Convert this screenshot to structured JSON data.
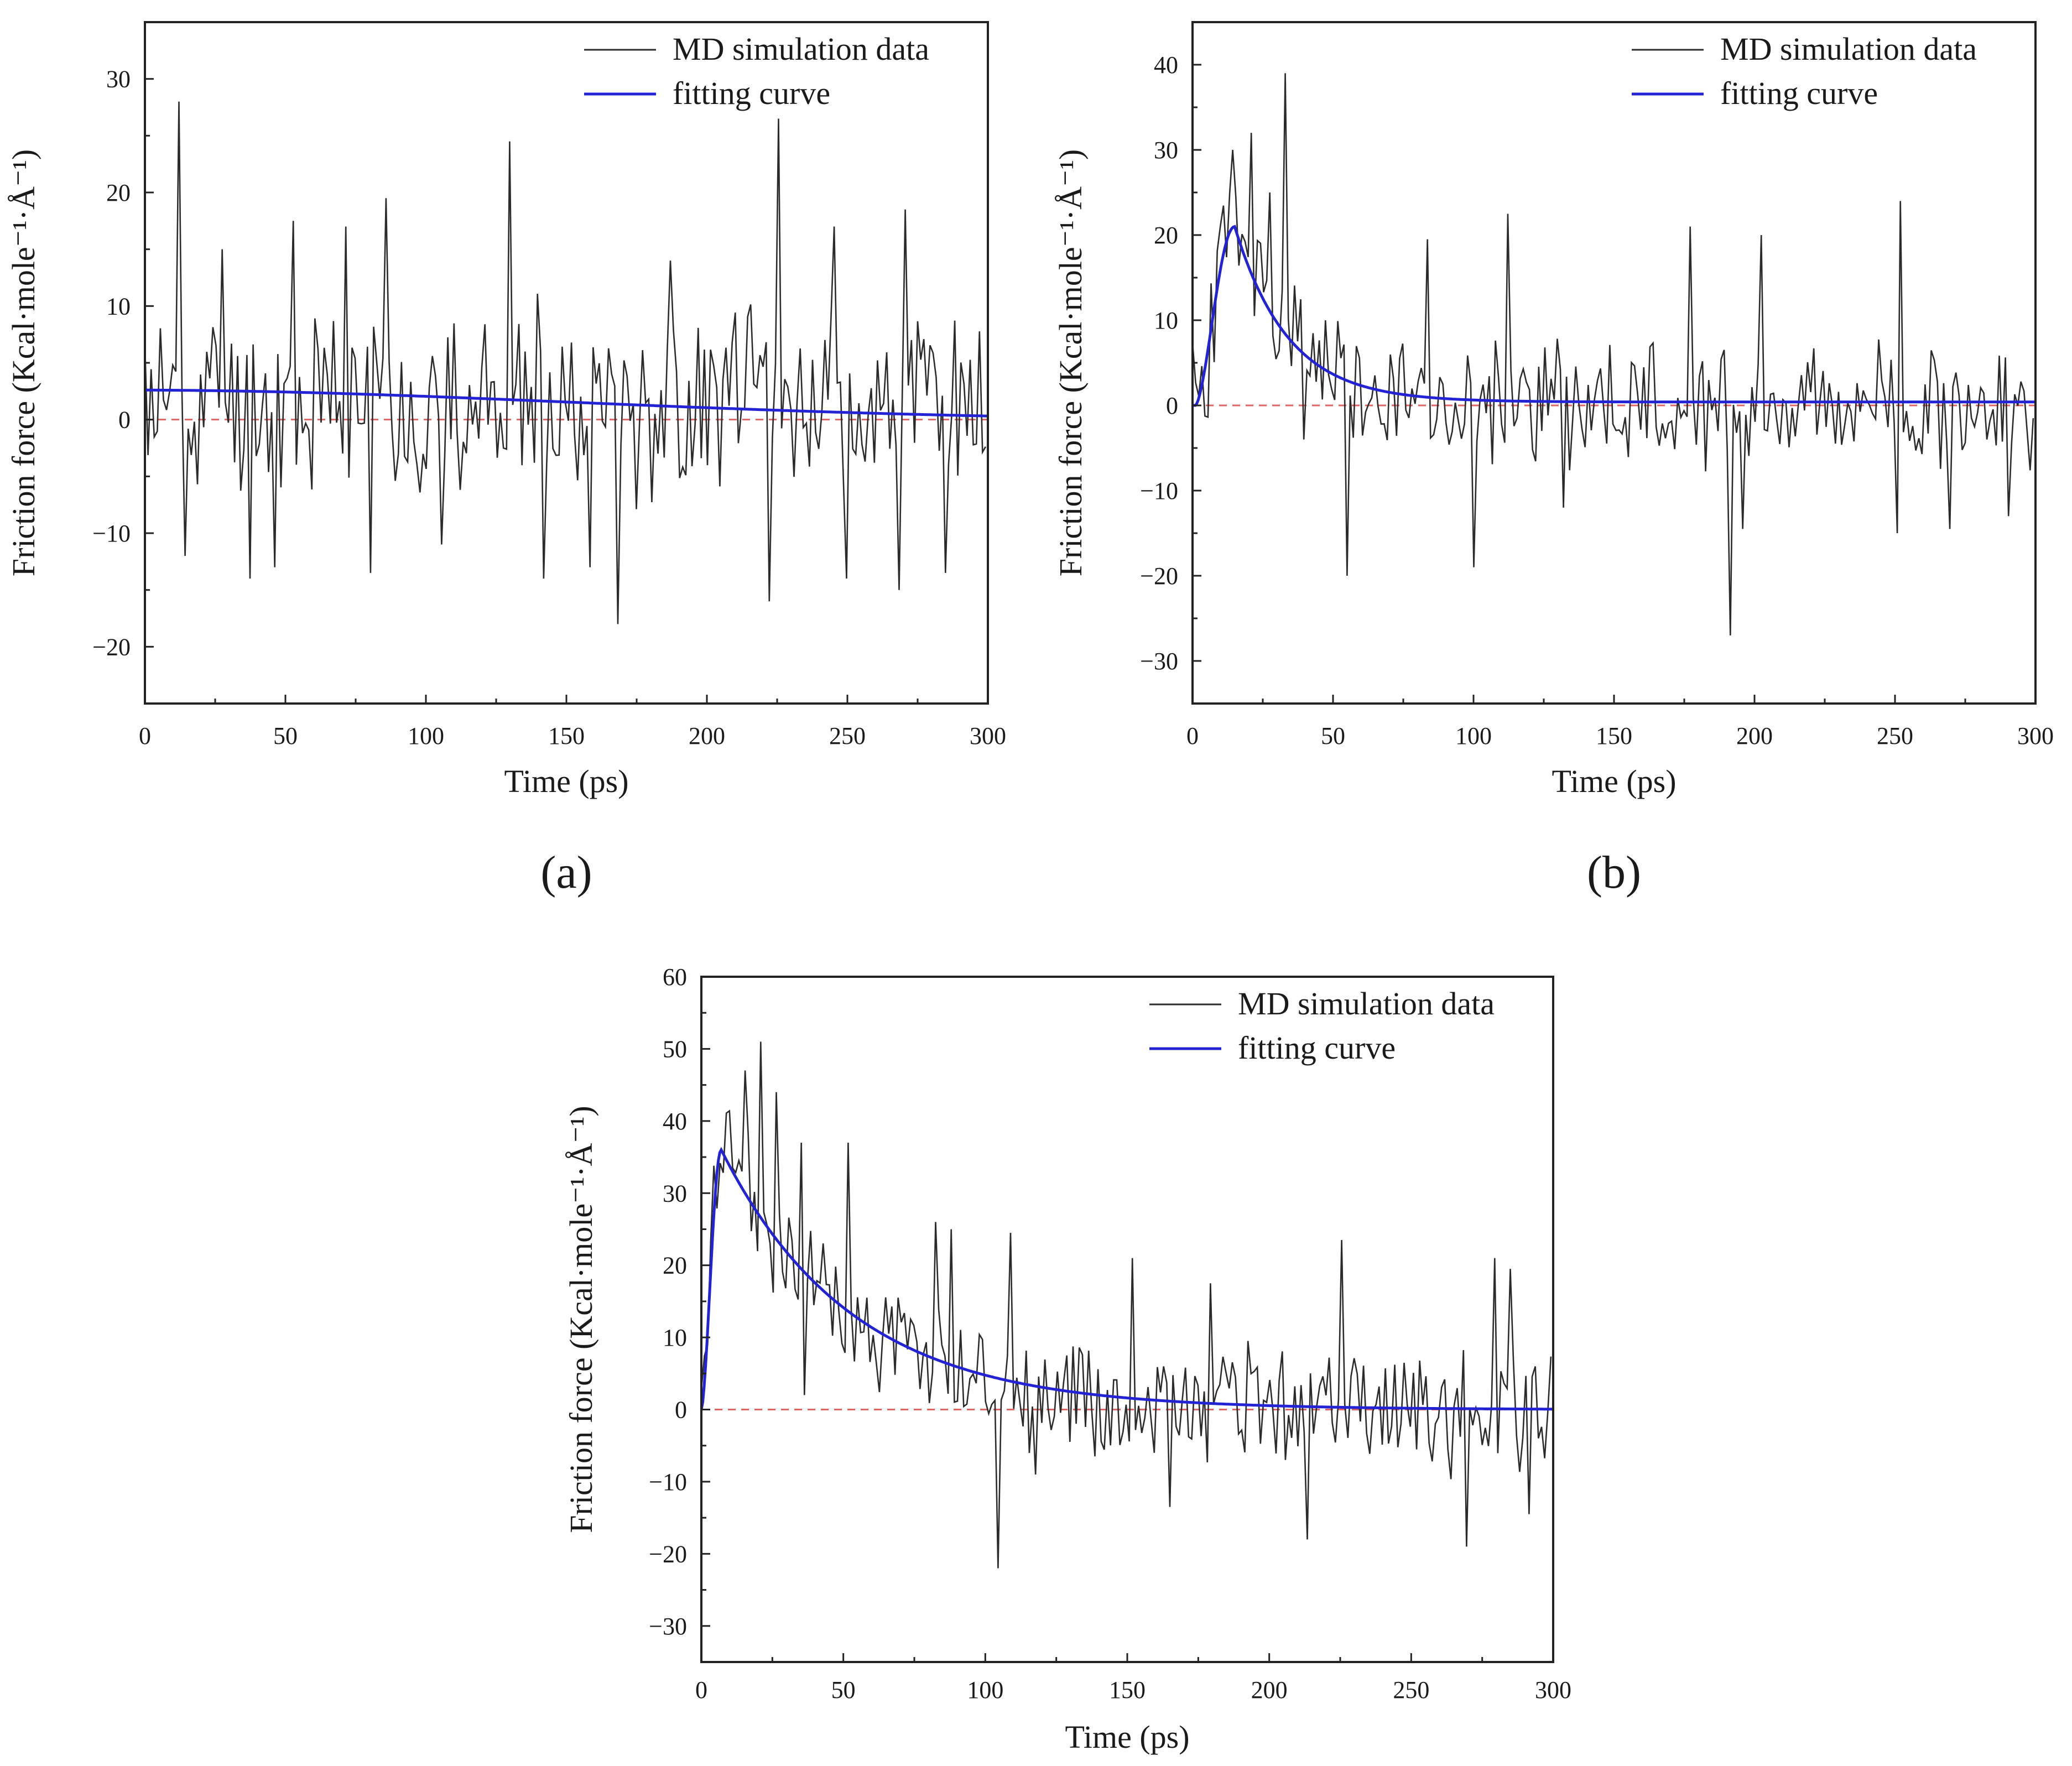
{
  "chart_data": [
    {
      "id": "a",
      "type": "line",
      "panel_label": "(a)",
      "xlabel": "Time (ps)",
      "ylabel": "Friction force (Kcal·mole⁻¹·Å⁻¹)",
      "xlim": [
        0,
        300
      ],
      "ylim": [
        -25,
        35
      ],
      "xticks": [
        0,
        50,
        100,
        150,
        200,
        250,
        300
      ],
      "yticks": [
        -20,
        -10,
        0,
        10,
        20,
        30
      ],
      "legend": {
        "position": "top-right",
        "entries": [
          "MD simulation data",
          "fitting curve"
        ]
      },
      "reference_line": {
        "y": 0,
        "color": "#e06666",
        "style": "dashed"
      },
      "series": [
        {
          "name": "MD simulation data",
          "color": "#2b2b2b",
          "generator": {
            "mean": 1.5,
            "amplitude": 8.5,
            "seed": 11
          },
          "spikes": [
            [
              12,
              28
            ],
            [
              14,
              -12
            ],
            [
              27,
              15
            ],
            [
              37,
              -14
            ],
            [
              46,
              -13
            ],
            [
              53,
              17.5
            ],
            [
              72,
              17
            ],
            [
              80,
              -13.5
            ],
            [
              86,
              19.5
            ],
            [
              106,
              -11
            ],
            [
              130,
              24.5
            ],
            [
              142,
              -14
            ],
            [
              158,
              -13
            ],
            [
              168,
              -18
            ],
            [
              187,
              14
            ],
            [
              226,
              26.5
            ],
            [
              222,
              -16
            ],
            [
              245,
              17
            ],
            [
              250,
              -14
            ],
            [
              268,
              -15
            ],
            [
              271,
              18.5
            ],
            [
              285,
              -13.5
            ]
          ]
        },
        {
          "name": "fitting curve",
          "color": "#2323d6",
          "model": "decay",
          "params": {
            "b": 2.6,
            "t0": 300,
            "tau": 150,
            "peak": 2.6,
            "rise": 0
          }
        }
      ]
    },
    {
      "id": "b",
      "type": "line",
      "panel_label": "(b)",
      "xlabel": "Time (ps)",
      "ylabel": "Friction force (Kcal·mole⁻¹·Å⁻¹)",
      "xlim": [
        0,
        300
      ],
      "ylim": [
        -35,
        45
      ],
      "xticks": [
        0,
        50,
        100,
        150,
        200,
        250,
        300
      ],
      "yticks": [
        -30,
        -20,
        -10,
        0,
        10,
        20,
        30,
        40
      ],
      "legend": {
        "position": "top-right",
        "entries": [
          "MD simulation data",
          "fitting curve"
        ]
      },
      "reference_line": {
        "y": 0,
        "color": "#e06666",
        "style": "dashed"
      },
      "series": [
        {
          "name": "MD simulation data",
          "color": "#2b2b2b",
          "generator": {
            "mean": 0,
            "amplitude": 8,
            "seed": 23
          },
          "spikes": [
            [
              14,
              30
            ],
            [
              21,
              32
            ],
            [
              27,
              25
            ],
            [
              33,
              39
            ],
            [
              40,
              -4
            ],
            [
              55,
              -20
            ],
            [
              84,
              19.5
            ],
            [
              100,
              -19
            ],
            [
              112,
              22.5
            ],
            [
              132,
              -12
            ],
            [
              177,
              21
            ],
            [
              191,
              -27
            ],
            [
              196,
              -14.5
            ],
            [
              202,
              20
            ],
            [
              251,
              -15
            ],
            [
              252,
              24
            ],
            [
              269,
              -14.5
            ],
            [
              290,
              -13
            ]
          ]
        },
        {
          "name": "fitting curve",
          "color": "#2323d6",
          "model": "rise-decay",
          "params": {
            "peak": 21,
            "t_peak": 15,
            "tau": 19,
            "base": 0.4,
            "start": 1
          }
        }
      ]
    },
    {
      "id": "c",
      "type": "line",
      "panel_label": "",
      "xlabel": "Time (ps)",
      "ylabel": "Friction force (Kcal·mole⁻¹·Å⁻¹)",
      "xlim": [
        0,
        300
      ],
      "ylim": [
        -35,
        60
      ],
      "xticks": [
        0,
        50,
        100,
        150,
        200,
        250,
        300
      ],
      "yticks": [
        -30,
        -20,
        -10,
        0,
        10,
        20,
        30,
        40,
        50,
        60
      ],
      "legend": {
        "position": "top-right",
        "entries": [
          "MD simulation data",
          "fitting curve"
        ]
      },
      "reference_line": {
        "y": 0,
        "color": "#e06666",
        "style": "dashed"
      },
      "series": [
        {
          "name": "MD simulation data",
          "color": "#2b2b2b",
          "generator": {
            "mean": 0,
            "amplitude": 9,
            "seed": 37
          },
          "spikes": [
            [
              15,
              47
            ],
            [
              21,
              51
            ],
            [
              26,
              44
            ],
            [
              35,
              37
            ],
            [
              36,
              2
            ],
            [
              52,
              37
            ],
            [
              83,
              26
            ],
            [
              88,
              25
            ],
            [
              105,
              -22
            ],
            [
              109,
              24.5
            ],
            [
              118,
              -9
            ],
            [
              152,
              21
            ],
            [
              165,
              -13.5
            ],
            [
              179,
              17.5
            ],
            [
              213,
              -18
            ],
            [
              225,
              23.5
            ],
            [
              270,
              -19
            ],
            [
              279,
              21
            ],
            [
              285,
              19.5
            ],
            [
              292,
              -14.5
            ]
          ]
        },
        {
          "name": "fitting curve",
          "color": "#2323d6",
          "model": "rise-decay",
          "params": {
            "peak": 36,
            "t_peak": 7,
            "tau": 46,
            "base": 0,
            "start": 0
          }
        }
      ]
    }
  ]
}
